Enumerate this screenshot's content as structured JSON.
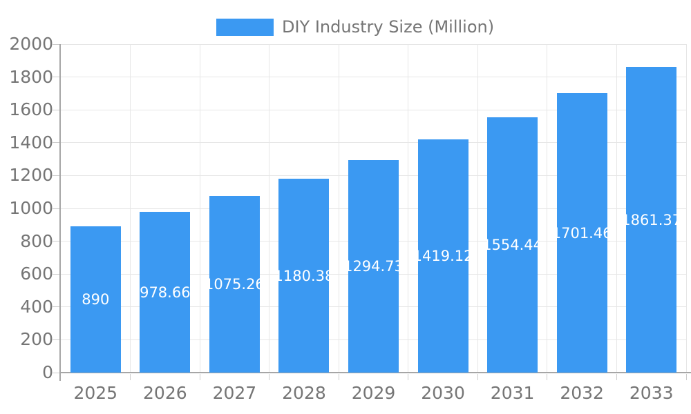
{
  "legend": {
    "label": "DIY Industry Size (Million)"
  },
  "colors": {
    "bar": "#3b99f2",
    "bar_label": "#ffffff",
    "axis_text": "#757575",
    "grid": "#e6e6e6",
    "tick": "#cccccc",
    "axis_line": "#a6a6a6",
    "background": "#ffffff"
  },
  "chart_data": {
    "type": "bar",
    "title": "DIY Industry Size (Million)",
    "categories": [
      "2025",
      "2026",
      "2027",
      "2028",
      "2029",
      "2030",
      "2031",
      "2032",
      "2033"
    ],
    "values": [
      890,
      978.66,
      1075.26,
      1180.38,
      1294.73,
      1419.12,
      1554.44,
      1701.46,
      1861.37
    ],
    "bar_labels": [
      "890",
      "978.66",
      "1075.26",
      "1180.38",
      "1294.73",
      "1419.12",
      "1554.44",
      "1701.46",
      "1861.37"
    ],
    "xlabel": "",
    "ylabel": "",
    "ylim": [
      0,
      2000
    ],
    "yticks": [
      0,
      200,
      400,
      600,
      800,
      1000,
      1200,
      1400,
      1600,
      1800,
      2000
    ],
    "grid": true,
    "legend_position": "top",
    "bar_label_position": "center"
  }
}
